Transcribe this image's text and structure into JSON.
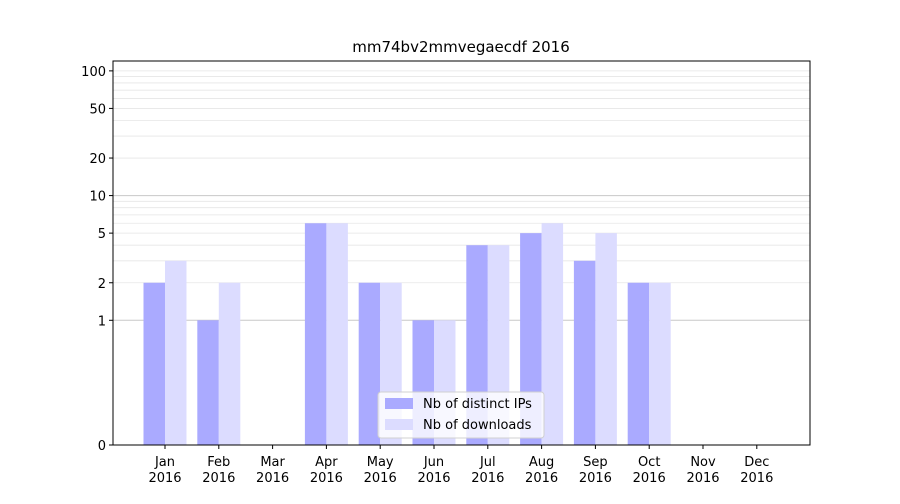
{
  "chart_data": {
    "type": "bar",
    "title": "mm74bv2mmvegaecdf 2016",
    "xlabel": "",
    "ylabel": "",
    "y_scale": "symlog",
    "ylim": [
      0,
      120
    ],
    "yticks": [
      0,
      1,
      2,
      5,
      10,
      20,
      50,
      100
    ],
    "grid": true,
    "legend_position": "lower-center",
    "categories": [
      {
        "month": "Jan",
        "year": "2016"
      },
      {
        "month": "Feb",
        "year": "2016"
      },
      {
        "month": "Mar",
        "year": "2016"
      },
      {
        "month": "Apr",
        "year": "2016"
      },
      {
        "month": "May",
        "year": "2016"
      },
      {
        "month": "Jun",
        "year": "2016"
      },
      {
        "month": "Jul",
        "year": "2016"
      },
      {
        "month": "Aug",
        "year": "2016"
      },
      {
        "month": "Sep",
        "year": "2016"
      },
      {
        "month": "Oct",
        "year": "2016"
      },
      {
        "month": "Nov",
        "year": "2016"
      },
      {
        "month": "Dec",
        "year": "2016"
      }
    ],
    "series": [
      {
        "name": "Nb of distinct IPs",
        "color": "#aaaaff",
        "values": [
          2,
          1,
          0,
          6,
          2,
          1,
          4,
          5,
          3,
          2,
          0,
          0
        ]
      },
      {
        "name": "Nb of downloads",
        "color": "#dcdcff",
        "values": [
          3,
          2,
          0,
          6,
          2,
          1,
          4,
          6,
          5,
          2,
          0,
          0
        ]
      }
    ]
  }
}
